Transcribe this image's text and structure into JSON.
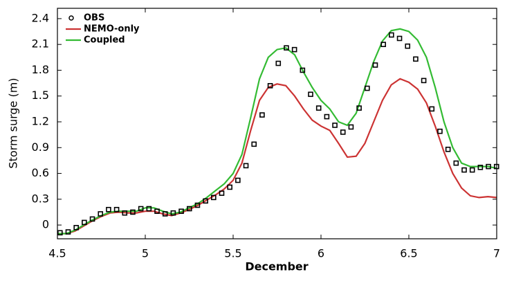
{
  "chart_data": {
    "type": "line",
    "x_label": "December",
    "y_label": "Storm surge (m)",
    "xlim": [
      4.5,
      7
    ],
    "xticks": [
      4.5,
      5,
      5.5,
      6,
      6.5,
      7
    ],
    "ylim": [
      -0.16,
      2.52
    ],
    "yticks": [
      0,
      0.3,
      0.6,
      0.9,
      1.2,
      1.5,
      1.8,
      2.1,
      2.4
    ],
    "legend": "upper left",
    "observations": {
      "name": "OBS",
      "color": "#000000",
      "x": [
        4.515,
        4.561,
        4.607,
        4.653,
        4.699,
        4.745,
        4.791,
        4.837,
        4.883,
        4.929,
        4.975,
        5.021,
        5.067,
        5.113,
        5.159,
        5.205,
        5.251,
        5.297,
        5.343,
        5.389,
        5.435,
        5.481,
        5.527,
        5.573,
        5.619,
        5.665,
        5.711,
        5.757,
        5.803,
        5.849,
        5.895,
        5.941,
        5.987,
        6.033,
        6.079,
        6.125,
        6.171,
        6.217,
        6.263,
        6.309,
        6.355,
        6.401,
        6.447,
        6.493,
        6.539,
        6.585,
        6.631,
        6.677,
        6.723,
        6.769,
        6.815,
        6.861,
        6.907,
        6.953,
        6.999
      ],
      "values": [
        -0.09,
        -0.08,
        -0.03,
        0.03,
        0.07,
        0.13,
        0.18,
        0.18,
        0.14,
        0.15,
        0.19,
        0.19,
        0.16,
        0.13,
        0.14,
        0.16,
        0.19,
        0.23,
        0.28,
        0.32,
        0.37,
        0.44,
        0.52,
        0.69,
        0.94,
        1.28,
        1.62,
        1.88,
        2.06,
        2.04,
        1.8,
        1.52,
        1.36,
        1.26,
        1.16,
        1.08,
        1.14,
        1.36,
        1.59,
        1.86,
        2.1,
        2.21,
        2.17,
        2.08,
        1.93,
        1.68,
        1.35,
        1.09,
        0.88,
        0.72,
        0.64,
        0.64,
        0.67,
        0.68,
        0.68
      ]
    },
    "x": [
      4.5,
      4.55,
      4.6,
      4.65,
      4.7,
      4.75,
      4.8,
      4.85,
      4.9,
      4.95,
      5.0,
      5.05,
      5.1,
      5.15,
      5.2,
      5.25,
      5.3,
      5.35,
      5.4,
      5.45,
      5.5,
      5.55,
      5.6,
      5.65,
      5.7,
      5.75,
      5.8,
      5.85,
      5.9,
      5.95,
      6.0,
      6.05,
      6.1,
      6.15,
      6.2,
      6.25,
      6.3,
      6.35,
      6.4,
      6.45,
      6.5,
      6.55,
      6.6,
      6.65,
      6.7,
      6.75,
      6.8,
      6.85,
      6.9,
      6.95,
      7.0
    ],
    "series": [
      {
        "name": "NEMO-only",
        "color": "#cc3333",
        "values": [
          -0.1,
          -0.1,
          -0.07,
          -0.01,
          0.05,
          0.1,
          0.14,
          0.15,
          0.14,
          0.14,
          0.16,
          0.16,
          0.13,
          0.11,
          0.14,
          0.18,
          0.23,
          0.29,
          0.35,
          0.42,
          0.52,
          0.72,
          1.1,
          1.45,
          1.6,
          1.64,
          1.62,
          1.5,
          1.35,
          1.22,
          1.15,
          1.1,
          0.95,
          0.79,
          0.8,
          0.95,
          1.2,
          1.45,
          1.63,
          1.7,
          1.66,
          1.58,
          1.42,
          1.15,
          0.85,
          0.6,
          0.43,
          0.34,
          0.32,
          0.33,
          0.32
        ]
      },
      {
        "name": "Coupled",
        "color": "#33bb33",
        "values": [
          -0.1,
          -0.1,
          -0.06,
          0.0,
          0.06,
          0.11,
          0.15,
          0.16,
          0.16,
          0.16,
          0.2,
          0.2,
          0.16,
          0.13,
          0.15,
          0.2,
          0.25,
          0.32,
          0.4,
          0.48,
          0.6,
          0.82,
          1.25,
          1.7,
          1.95,
          2.04,
          2.06,
          1.98,
          1.78,
          1.6,
          1.45,
          1.35,
          1.2,
          1.16,
          1.3,
          1.6,
          1.9,
          2.14,
          2.26,
          2.28,
          2.25,
          2.15,
          1.95,
          1.6,
          1.2,
          0.9,
          0.72,
          0.68,
          0.68,
          0.68,
          0.66
        ]
      }
    ]
  }
}
